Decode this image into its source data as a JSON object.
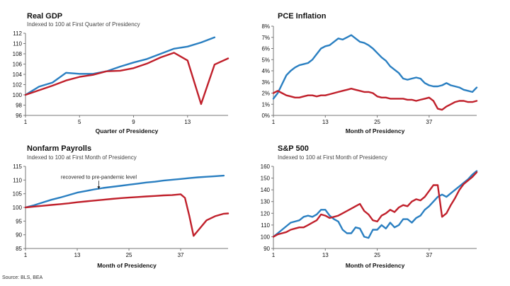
{
  "source": "Source: BLS, BEA",
  "colors": {
    "blue": "#2a7fc1",
    "red": "#c0202b",
    "axis": "#777777",
    "text": "#111111"
  },
  "chart_data": [
    {
      "type": "line",
      "title": "Real GDP",
      "subtitle": "Indexed to 100 at First Quarter of Presidency",
      "xlabel": "Quarter of Presidency",
      "ylabel": "",
      "xlim": [
        1,
        16
      ],
      "ylim": [
        96,
        112
      ],
      "xticks": [
        1,
        5,
        9,
        13
      ],
      "yticks": [
        96,
        98,
        100,
        102,
        104,
        106,
        108,
        110,
        112
      ],
      "ytick_format": "int",
      "annotations": [],
      "series": [
        {
          "color": "blue",
          "x": [
            1,
            2,
            3,
            4,
            5,
            6,
            7,
            8,
            9,
            10,
            11,
            12,
            13,
            14,
            15
          ],
          "y": [
            100,
            101.6,
            102.4,
            104.3,
            104.1,
            104.1,
            104.6,
            105.5,
            106.3,
            107,
            108,
            109,
            109.4,
            110.2,
            111.2
          ]
        },
        {
          "color": "red",
          "x": [
            1,
            2,
            3,
            4,
            5,
            6,
            7,
            8,
            9,
            10,
            11,
            12,
            13,
            14,
            15,
            16
          ],
          "y": [
            100,
            100.9,
            101.8,
            102.8,
            103.5,
            103.9,
            104.6,
            104.7,
            105.2,
            106.1,
            107.3,
            108.2,
            106.7,
            98.2,
            105.9,
            107.1
          ]
        }
      ]
    },
    {
      "type": "line",
      "title": "PCE Inflation",
      "subtitle": "",
      "xlabel": "Month of Presidency",
      "ylabel": "",
      "xlim": [
        1,
        48
      ],
      "ylim": [
        0,
        8
      ],
      "xticks": [
        1,
        13,
        25,
        37
      ],
      "yticks": [
        0,
        1,
        2,
        3,
        4,
        5,
        6,
        7,
        8
      ],
      "ytick_format": "pct",
      "annotations": [],
      "series": [
        {
          "color": "blue",
          "x": [
            1,
            2,
            3,
            4,
            5,
            6,
            7,
            8,
            9,
            10,
            11,
            12,
            13,
            14,
            15,
            16,
            17,
            18,
            19,
            20,
            21,
            22,
            23,
            24,
            25,
            26,
            27,
            28,
            29,
            30,
            31,
            32,
            33,
            34,
            35,
            36,
            37,
            38,
            39,
            40,
            41,
            42,
            43,
            44,
            45,
            46,
            47,
            48
          ],
          "y": [
            1.5,
            2.0,
            2.8,
            3.6,
            4.0,
            4.3,
            4.5,
            4.6,
            4.7,
            5.0,
            5.5,
            6.0,
            6.2,
            6.3,
            6.6,
            6.9,
            6.8,
            7.0,
            7.2,
            6.9,
            6.6,
            6.5,
            6.3,
            6.0,
            5.6,
            5.2,
            4.9,
            4.4,
            4.1,
            3.8,
            3.3,
            3.2,
            3.3,
            3.4,
            3.3,
            2.9,
            2.7,
            2.6,
            2.6,
            2.7,
            2.9,
            2.7,
            2.6,
            2.5,
            2.3,
            2.2,
            2.1,
            2.5
          ]
        },
        {
          "color": "red",
          "x": [
            1,
            2,
            3,
            4,
            5,
            6,
            7,
            8,
            9,
            10,
            11,
            12,
            13,
            14,
            15,
            16,
            17,
            18,
            19,
            20,
            21,
            22,
            23,
            24,
            25,
            26,
            27,
            28,
            29,
            30,
            31,
            32,
            33,
            34,
            35,
            36,
            37,
            38,
            39,
            40,
            41,
            42,
            43,
            44,
            45,
            46,
            47,
            48
          ],
          "y": [
            2.0,
            2.2,
            2.0,
            1.8,
            1.7,
            1.6,
            1.6,
            1.7,
            1.8,
            1.8,
            1.7,
            1.8,
            1.8,
            1.9,
            2.0,
            2.1,
            2.2,
            2.3,
            2.4,
            2.3,
            2.2,
            2.1,
            2.1,
            2.0,
            1.7,
            1.6,
            1.6,
            1.5,
            1.5,
            1.5,
            1.5,
            1.4,
            1.4,
            1.3,
            1.4,
            1.5,
            1.6,
            1.3,
            0.6,
            0.5,
            0.8,
            1.0,
            1.2,
            1.3,
            1.3,
            1.2,
            1.2,
            1.3
          ]
        }
      ]
    },
    {
      "type": "line",
      "title": "Nonfarm Payrolls",
      "subtitle": "Indexed to 100 at First Month of Presidency",
      "xlabel": "Month of Presidency",
      "ylabel": "",
      "xlim": [
        1,
        48
      ],
      "ylim": [
        85,
        115
      ],
      "xticks": [
        1,
        13,
        25,
        37
      ],
      "yticks": [
        85,
        90,
        95,
        100,
        105,
        110,
        115
      ],
      "ytick_format": "int",
      "annotations": [
        {
          "text": "recovered to pre-pandemic level",
          "x": 18,
          "y": 106.4
        }
      ],
      "series": [
        {
          "color": "blue",
          "x": [
            1,
            3,
            5,
            7,
            9,
            11,
            13,
            15,
            17,
            19,
            21,
            23,
            25,
            27,
            29,
            31,
            33,
            35,
            37,
            39,
            41,
            43,
            45,
            47
          ],
          "y": [
            100,
            100.8,
            101.8,
            102.8,
            103.6,
            104.5,
            105.4,
            106,
            106.6,
            107.1,
            107.5,
            107.9,
            108.3,
            108.7,
            109.1,
            109.4,
            109.8,
            110.1,
            110.4,
            110.7,
            111,
            111.2,
            111.4,
            111.6
          ]
        },
        {
          "color": "red",
          "x": [
            1,
            3,
            5,
            7,
            9,
            11,
            13,
            15,
            17,
            19,
            21,
            23,
            25,
            27,
            29,
            31,
            33,
            35,
            37,
            38,
            39,
            40,
            41,
            43,
            45,
            47,
            48
          ],
          "y": [
            100,
            100.3,
            100.6,
            100.9,
            101.2,
            101.5,
            101.9,
            102.2,
            102.5,
            102.8,
            103.1,
            103.4,
            103.6,
            103.8,
            104,
            104.2,
            104.4,
            104.5,
            104.8,
            103.5,
            97,
            89.6,
            91.5,
            95.3,
            96.8,
            97.7,
            97.8
          ]
        }
      ]
    },
    {
      "type": "line",
      "title": "S&P 500",
      "subtitle": "Indexed to 100 at First Month of Presidency",
      "xlabel": "Month of Presidency",
      "ylabel": "",
      "xlim": [
        1,
        48
      ],
      "ylim": [
        90,
        160
      ],
      "xticks": [
        1,
        13,
        25,
        37
      ],
      "yticks": [
        90,
        100,
        110,
        120,
        130,
        140,
        150,
        160
      ],
      "ytick_format": "int",
      "annotations": [],
      "series": [
        {
          "color": "blue",
          "x": [
            1,
            2,
            3,
            4,
            5,
            6,
            7,
            8,
            9,
            10,
            11,
            12,
            13,
            14,
            15,
            16,
            17,
            18,
            19,
            20,
            21,
            22,
            23,
            24,
            25,
            26,
            27,
            28,
            29,
            30,
            31,
            32,
            33,
            34,
            35,
            36,
            37,
            38,
            39,
            40,
            41,
            42,
            43,
            44,
            45,
            46,
            47,
            48
          ],
          "y": [
            100,
            103,
            106,
            109,
            112,
            113,
            114,
            117,
            118,
            117,
            119,
            123,
            123,
            118,
            115,
            113,
            106,
            103,
            103,
            108,
            107,
            100,
            99,
            106,
            106,
            110,
            107,
            112,
            108,
            110,
            115,
            115,
            112,
            116,
            118,
            123,
            126,
            130,
            134,
            136,
            134,
            137,
            140,
            143,
            146,
            149,
            153,
            156
          ]
        },
        {
          "color": "red",
          "x": [
            1,
            2,
            3,
            4,
            5,
            6,
            7,
            8,
            9,
            10,
            11,
            12,
            13,
            14,
            15,
            16,
            17,
            18,
            19,
            20,
            21,
            22,
            23,
            24,
            25,
            26,
            27,
            28,
            29,
            30,
            31,
            32,
            33,
            34,
            35,
            36,
            37,
            38,
            39,
            40,
            41,
            42,
            43,
            44,
            45,
            46,
            47,
            48
          ],
          "y": [
            100,
            102,
            103,
            104,
            106,
            107,
            108,
            108,
            110,
            112,
            114,
            119,
            118,
            116,
            117,
            118,
            120,
            122,
            124,
            126,
            128,
            122,
            119,
            114,
            113,
            118,
            120,
            123,
            121,
            125,
            127,
            126,
            130,
            132,
            131,
            134,
            139,
            144,
            144,
            117,
            120,
            127,
            133,
            140,
            145,
            148,
            151,
            155
          ]
        }
      ]
    }
  ]
}
